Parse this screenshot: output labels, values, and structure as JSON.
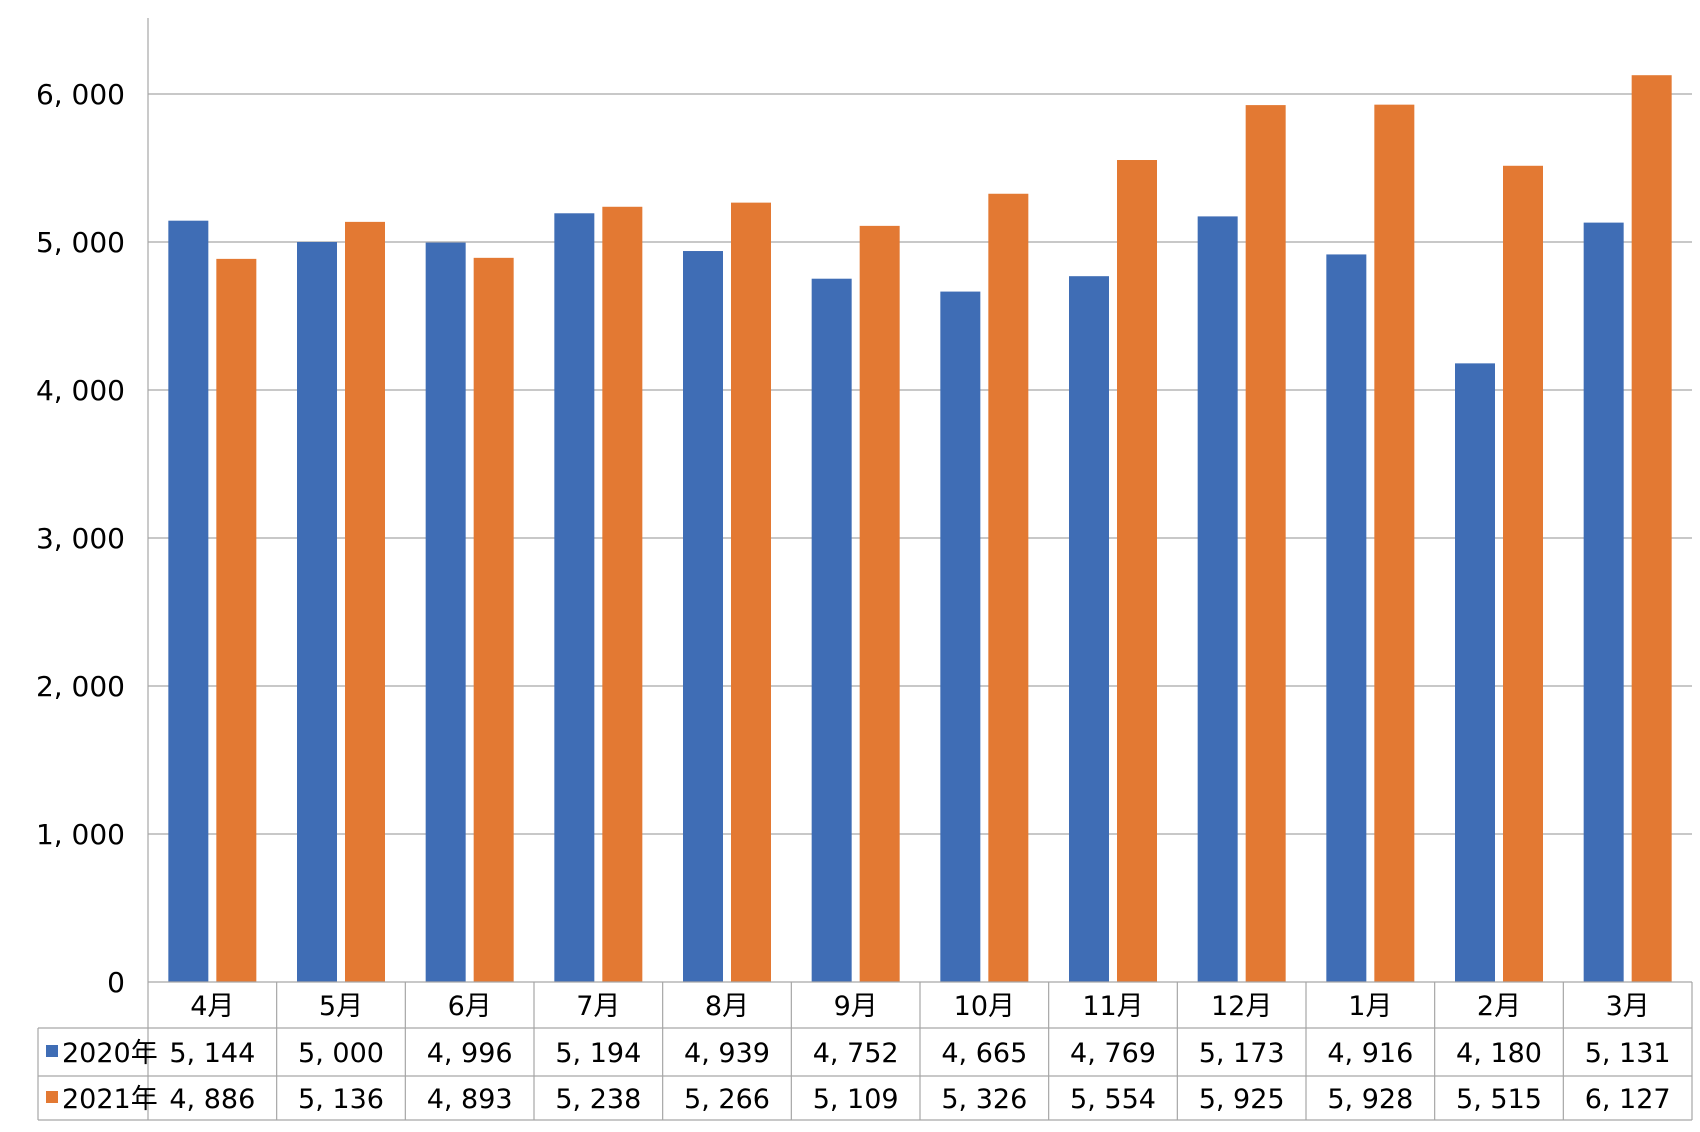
{
  "chart_data": {
    "type": "bar",
    "title": "",
    "xlabel": "",
    "ylabel": "",
    "ylim": [
      0,
      6500
    ],
    "yticks": [
      0,
      1000,
      2000,
      3000,
      4000,
      5000,
      6000
    ],
    "ytick_labels": [
      "0",
      "1, 000",
      "2, 000",
      "3, 000",
      "4, 000",
      "5, 000",
      "6, 000"
    ],
    "grid": true,
    "legend": "data-table-rows",
    "categories": [
      "4月",
      "5月",
      "6月",
      "7月",
      "8月",
      "9月",
      "10月",
      "11月",
      "12月",
      "1月",
      "2月",
      "3月"
    ],
    "series": [
      {
        "name": "2020年",
        "color": "#3f6db5",
        "values": [
          5144,
          5000,
          4996,
          5194,
          4939,
          4752,
          4665,
          4769,
          5173,
          4916,
          4180,
          5131
        ],
        "labels": [
          "5, 144",
          "5, 000",
          "4, 996",
          "5, 194",
          "4, 939",
          "4, 752",
          "4, 665",
          "4, 769",
          "5, 173",
          "4, 916",
          "4, 180",
          "5, 131"
        ]
      },
      {
        "name": "2021年",
        "color": "#e37933",
        "values": [
          4886,
          5136,
          4893,
          5238,
          5266,
          5109,
          5326,
          5554,
          5925,
          5928,
          5515,
          6127
        ],
        "labels": [
          "4, 886",
          "5, 136",
          "4, 893",
          "5, 238",
          "5, 266",
          "5, 109",
          "5, 326",
          "5, 554",
          "5, 925",
          "5, 928",
          "5, 515",
          "6, 127"
        ]
      }
    ]
  }
}
